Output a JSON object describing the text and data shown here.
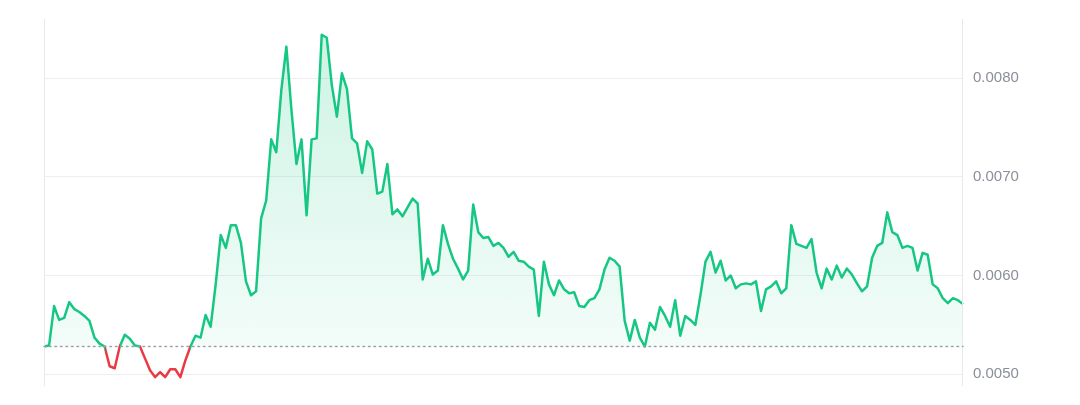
{
  "chart_data": {
    "type": "area",
    "categories": [
      null,
      null,
      null,
      null,
      null,
      null,
      null,
      null,
      null,
      null,
      null,
      null,
      null,
      null,
      null,
      null,
      null,
      null,
      null,
      null,
      null,
      null,
      null,
      null,
      null,
      null,
      null,
      null,
      null,
      null,
      null,
      null,
      null,
      null,
      null,
      null,
      null,
      null,
      null,
      null,
      null,
      null,
      null,
      null,
      null,
      null,
      null,
      null,
      null,
      null,
      null,
      null,
      null,
      null,
      null,
      null,
      null,
      null,
      null,
      null,
      null,
      null,
      null,
      null,
      null,
      null,
      null,
      null,
      null,
      null,
      null,
      null,
      null,
      null,
      null,
      null,
      null,
      null,
      null,
      null,
      null,
      null,
      null,
      null,
      null,
      null,
      null,
      null,
      null,
      null,
      null,
      null,
      null,
      null,
      null,
      null,
      null,
      null,
      null,
      null,
      null,
      null,
      null,
      null,
      null,
      null,
      null,
      null,
      null,
      null,
      null,
      null,
      null,
      null,
      null,
      null,
      null,
      null,
      null,
      null,
      null,
      null,
      null,
      null,
      null,
      null,
      null,
      null,
      null,
      null,
      null,
      null,
      null,
      null,
      null,
      null,
      null,
      null,
      null,
      null,
      null,
      null,
      null,
      null,
      null,
      null,
      null,
      null,
      null,
      null,
      null,
      null,
      null,
      null,
      null,
      null,
      null,
      null,
      null,
      null,
      null,
      null,
      null,
      null,
      null,
      null,
      null,
      null,
      null,
      null,
      null,
      null,
      null,
      null,
      null,
      null,
      null,
      null,
      null,
      null,
      null,
      null,
      null
    ],
    "series": [
      {
        "color": "#16c784",
        "values": [
          0.00528,
          0.00529,
          0.00569,
          0.00555,
          0.00557,
          0.00573,
          0.00566,
          0.00563,
          0.00559,
          0.00554,
          0.00537,
          0.00531,
          0.00528,
          0.00508,
          0.00506,
          0.00528,
          0.0054,
          0.00536,
          0.00529,
          0.00528,
          0.00516,
          0.00504,
          0.00497,
          0.00502,
          0.00497,
          0.00505,
          0.00505,
          0.00497,
          0.00514,
          0.00528,
          0.00539,
          0.00537,
          0.0056,
          0.00548,
          0.00591,
          0.00641,
          0.00628,
          0.00651,
          0.00651,
          0.00633,
          0.00594,
          0.0058,
          0.00584,
          0.00658,
          0.00676,
          0.00738,
          0.00725,
          0.00788,
          0.00832,
          0.00768,
          0.00713,
          0.00738,
          0.00661,
          0.00738,
          0.00739,
          0.00844,
          0.00841,
          0.00793,
          0.00761,
          0.00805,
          0.00789,
          0.00739,
          0.00734,
          0.00704,
          0.00736,
          0.00728,
          0.00683,
          0.00685,
          0.00713,
          0.00662,
          0.00667,
          0.0066,
          0.00669,
          0.00678,
          0.00673,
          0.00596,
          0.00617,
          0.00601,
          0.00605,
          0.00651,
          0.00632,
          0.00617,
          0.00607,
          0.00596,
          0.00605,
          0.00672,
          0.00644,
          0.00638,
          0.00639,
          0.0063,
          0.00633,
          0.00628,
          0.00619,
          0.00624,
          0.00615,
          0.00614,
          0.00609,
          0.00606,
          0.00559,
          0.00614,
          0.00591,
          0.0058,
          0.00595,
          0.00586,
          0.00582,
          0.00583,
          0.00569,
          0.00568,
          0.00575,
          0.00577,
          0.00586,
          0.00606,
          0.00618,
          0.00615,
          0.00609,
          0.00554,
          0.00534,
          0.00555,
          0.00537,
          0.00528,
          0.00552,
          0.00545,
          0.00568,
          0.00559,
          0.00548,
          0.00575,
          0.00539,
          0.00559,
          0.00555,
          0.0055,
          0.0058,
          0.00614,
          0.00624,
          0.00603,
          0.00615,
          0.00595,
          0.006,
          0.00587,
          0.00591,
          0.00592,
          0.00591,
          0.00594,
          0.00564,
          0.00586,
          0.00589,
          0.00594,
          0.00582,
          0.00587,
          0.00651,
          0.00632,
          0.0063,
          0.00628,
          0.00637,
          0.00603,
          0.00587,
          0.00607,
          0.00596,
          0.0061,
          0.00598,
          0.00607,
          0.00601,
          0.00592,
          0.00584,
          0.00589,
          0.00618,
          0.0063,
          0.00633,
          0.00664,
          0.00644,
          0.00641,
          0.00628,
          0.0063,
          0.00628,
          0.00605,
          0.00623,
          0.00621,
          0.00591,
          0.00587,
          0.00577,
          0.00572,
          0.00577,
          0.00575,
          0.00571
        ],
        "colors": [
          "#16c784",
          "#16c784",
          "#16c784",
          "#16c784",
          "#16c784",
          "#16c784",
          "#16c784",
          "#16c784",
          "#16c784",
          "#16c784",
          "#16c784",
          "#16c784",
          "#16c784",
          "#ea3943",
          "#ea3943",
          "#16c784",
          "#16c784",
          "#16c784",
          "#16c784",
          "#16c784",
          "#ea3943",
          "#ea3943",
          "#ea3943",
          "#ea3943",
          "#ea3943",
          "#ea3943",
          "#ea3943",
          "#ea3943",
          "#ea3943",
          "#16c784",
          "#16c784",
          "#16c784",
          "#16c784",
          "#16c784",
          "#16c784",
          "#16c784",
          "#16c784",
          "#16c784",
          "#16c784",
          "#16c784",
          "#16c784",
          "#16c784",
          "#16c784",
          "#16c784",
          "#16c784",
          "#16c784",
          "#16c784",
          "#16c784",
          "#16c784",
          "#16c784",
          "#16c784",
          "#16c784",
          "#16c784",
          "#16c784",
          "#16c784",
          "#16c784",
          "#16c784",
          "#16c784",
          "#16c784",
          "#16c784",
          "#16c784",
          "#16c784",
          "#16c784",
          "#16c784",
          "#16c784",
          "#16c784",
          "#16c784",
          "#16c784",
          "#16c784",
          "#16c784",
          "#16c784",
          "#16c784",
          "#16c784",
          "#16c784",
          "#16c784",
          "#16c784",
          "#16c784",
          "#16c784",
          "#16c784",
          "#16c784",
          "#16c784",
          "#16c784",
          "#16c784",
          "#16c784",
          "#16c784",
          "#16c784",
          "#16c784",
          "#16c784",
          "#16c784",
          "#16c784",
          "#16c784",
          "#16c784",
          "#16c784",
          "#16c784",
          "#16c784",
          "#16c784",
          "#16c784",
          "#16c784",
          "#16c784",
          "#16c784",
          "#16c784",
          "#16c784",
          "#16c784",
          "#16c784",
          "#16c784",
          "#16c784",
          "#16c784",
          "#16c784",
          "#16c784",
          "#16c784",
          "#16c784",
          "#16c784",
          "#16c784",
          "#16c784",
          "#16c784",
          "#16c784",
          "#16c784",
          "#16c784",
          "#16c784",
          "#16c784",
          "#16c784",
          "#16c784",
          "#16c784",
          "#16c784",
          "#16c784",
          "#16c784",
          "#16c784",
          "#16c784",
          "#16c784",
          "#16c784",
          "#16c784",
          "#16c784",
          "#16c784",
          "#16c784",
          "#16c784",
          "#16c784",
          "#16c784",
          "#16c784",
          "#16c784",
          "#16c784",
          "#16c784",
          "#16c784",
          "#16c784",
          "#16c784",
          "#16c784",
          "#16c784",
          "#16c784",
          "#16c784",
          "#16c784",
          "#16c784",
          "#16c784",
          "#16c784",
          "#16c784",
          "#16c784",
          "#16c784",
          "#16c784",
          "#16c784",
          "#16c784",
          "#16c784",
          "#16c784",
          "#16c784",
          "#16c784",
          "#16c784",
          "#16c784",
          "#16c784",
          "#16c784",
          "#16c784",
          "#16c784",
          "#16c784",
          "#16c784",
          "#16c784",
          "#16c784",
          "#16c784",
          "#16c784",
          "#16c784",
          "#16c784",
          "#16c784",
          "#16c784",
          "#16c784",
          "#16c784",
          "#16c784",
          "#16c784",
          "#16c784"
        ]
      }
    ],
    "ylim": [
      0.00488,
      0.0086
    ],
    "yticks": [
      {
        "value": 0.005,
        "label": "0.0050"
      },
      {
        "value": 0.006,
        "label": "0.0060"
      },
      {
        "value": 0.007,
        "label": "0.0070"
      },
      {
        "value": 0.008,
        "label": "0.0080"
      }
    ],
    "ref_lines": [
      {
        "axis": "y",
        "value": 0.00528,
        "color": "#9aa0a8",
        "line_style": "dotted"
      }
    ],
    "grid": "y",
    "tick_labels": "y",
    "legend": false
  }
}
